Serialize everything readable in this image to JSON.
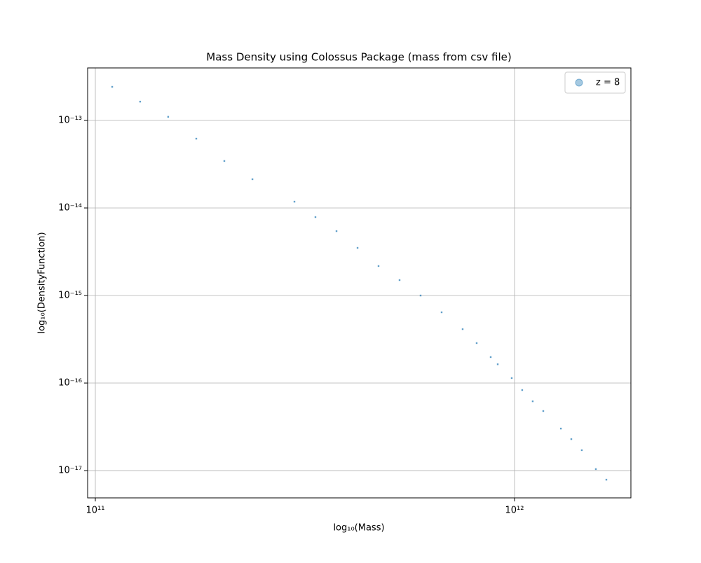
{
  "chart_data": {
    "type": "scatter",
    "title": "Mass Density using Colossus Package (mass from csv file)",
    "x_label": "log₁₀(Mass)",
    "y_label": "log₁₀(DensityFunction)",
    "xscale": "log",
    "yscale": "log",
    "grid": true,
    "legend": "upper right",
    "xlim": [
      95850000000.0,
      1895000000000.0
    ],
    "ylim": [
      4.88e-18,
      3.98e-13
    ],
    "xticks": [
      {
        "value": 100000000000.0,
        "label": "10¹¹"
      },
      {
        "value": 1000000000000.0,
        "label": "10¹²"
      }
    ],
    "yticks": [
      {
        "value": 1e-17,
        "label": "10⁻¹⁷"
      },
      {
        "value": 1e-16,
        "label": "10⁻¹⁶"
      },
      {
        "value": 1e-15,
        "label": "10⁻¹⁵"
      },
      {
        "value": 1e-14,
        "label": "10⁻¹⁴"
      },
      {
        "value": 1e-13,
        "label": "10⁻¹³"
      }
    ],
    "series": [
      {
        "name": "z = 8",
        "color": "#1f77b4",
        "x": [
          109700000000.0,
          127900000000.0,
          149200000000.0,
          174100000000.0,
          203100000000.0,
          237000000000.0,
          298500000000.0,
          335000000000.0,
          376100000000.0,
          422200000000.0,
          473800000000.0,
          531800000000.0,
          596900000000.0,
          670000000000.0,
          752000000000.0,
          812200000000.0,
          877300000000.0,
          911800000000.0,
          984700000000.0,
          1043000000000.0,
          1105000000000.0,
          1171000000000.0,
          1290000000000.0,
          1366000000000.0,
          1447000000000.0,
          1563000000000.0,
          1656000000000.0
        ],
        "values": [
          2.42e-13,
          1.64e-13,
          1.1e-13,
          6.19e-14,
          3.44e-14,
          2.13e-14,
          1.18e-14,
          7.87e-15,
          5.44e-15,
          3.5e-15,
          2.17e-15,
          1.5e-15,
          1e-15,
          6.43e-16,
          4.13e-16,
          2.86e-16,
          1.98e-16,
          1.64e-16,
          1.14e-16,
          8.32e-17,
          6.19e-17,
          4.79e-17,
          3.02e-17,
          2.29e-17,
          1.71e-17,
          1.04e-17,
          7.87e-18
        ]
      }
    ]
  }
}
